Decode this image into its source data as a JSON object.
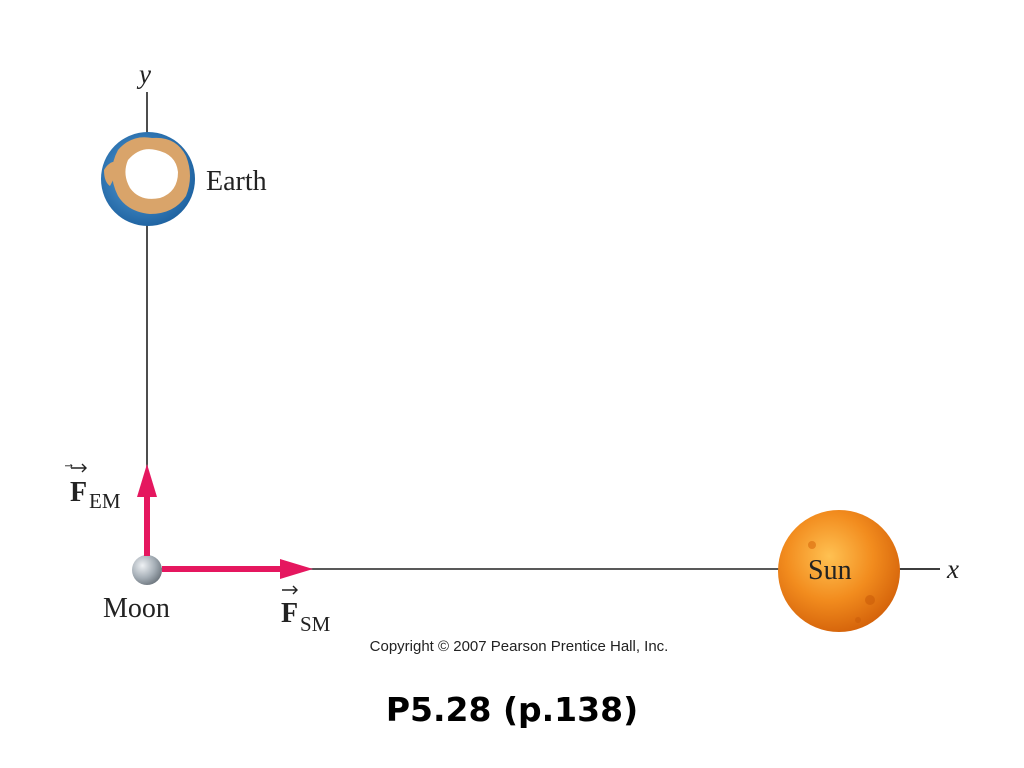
{
  "diagram": {
    "axis_x_label": "x",
    "axis_y_label": "y",
    "bodies": {
      "earth": "Earth",
      "moon": "Moon",
      "sun": "Sun"
    },
    "forces": {
      "earth_on_moon": {
        "symbol": "F",
        "subscript": "EM",
        "color": "#e5175f"
      },
      "sun_on_moon": {
        "symbol": "F",
        "subscript": "SM",
        "color": "#e5175f"
      }
    },
    "colors": {
      "axis": "#222222",
      "force_arrow": "#e5175f",
      "sun": "#f08a1c",
      "earth_ocean": "#2e7ec0",
      "earth_land": "#d9a46a",
      "moon": "#9aa3ab"
    }
  },
  "copyright": "Copyright © 2007 Pearson Prentice Hall, Inc.",
  "caption": "P5.28 (p.138)"
}
